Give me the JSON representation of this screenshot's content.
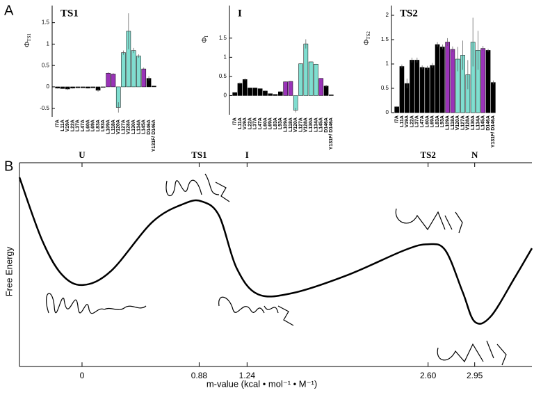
{
  "panel_labels": [
    "A",
    "B"
  ],
  "chart_data": [
    {
      "type": "bar",
      "title": "TS1",
      "title_color": "#cc1f1f",
      "ylabel": "Φ",
      "ylabel_sub": "TS1",
      "categories": [
        "I7A",
        "L11A",
        "V19A",
        "L22A",
        "L37A",
        "L47A",
        "L60A",
        "L69A",
        "L83A",
        "L93A",
        "L109A",
        "L118A",
        "V120A",
        "L127A",
        "V128A",
        "L130A",
        "L134A",
        "L145A",
        "D146A",
        "Y131F/ D146A"
      ],
      "values": [
        -0.03,
        -0.04,
        -0.05,
        -0.03,
        -0.02,
        -0.02,
        -0.03,
        -0.02,
        -0.08,
        -0.01,
        0.32,
        0.3,
        -0.48,
        0.8,
        1.3,
        0.85,
        0.72,
        0.42,
        0.2,
        0.02
      ],
      "errors": [
        0.01,
        0.01,
        0.02,
        0.01,
        0.01,
        0.01,
        0.01,
        0.01,
        0.03,
        0.01,
        0.02,
        0.02,
        0.12,
        0.05,
        0.42,
        0.06,
        0.04,
        0.03,
        0.05,
        0.01
      ],
      "colors": [
        "#000",
        "#000",
        "#000",
        "#000",
        "#000",
        "#000",
        "#000",
        "#000",
        "#000",
        "#000",
        "#9a33b8",
        "#9a33b8",
        "#7fded0",
        "#7fded0",
        "#7fded0",
        "#7fded0",
        "#7fded0",
        "#9a33b8",
        "#000",
        "#000"
      ],
      "ylim": [
        -0.7,
        1.9
      ],
      "yticks": [
        -0.5,
        0,
        0.5,
        1,
        1.5
      ]
    },
    {
      "type": "bar",
      "title": "I",
      "title_color": "#2244bb",
      "ylabel": "Φ",
      "ylabel_sub": "I",
      "categories": [
        "I7A",
        "L11A",
        "V19A",
        "L22A",
        "L37A",
        "L47A",
        "L60A",
        "L69A",
        "L83A",
        "L93A",
        "L109A",
        "L118A",
        "V120A",
        "L127A",
        "V128A",
        "L130A",
        "L134A",
        "L145A",
        "D146A",
        "Y131F/ D146A"
      ],
      "values": [
        0.08,
        0.32,
        0.42,
        0.2,
        0.2,
        0.18,
        0.12,
        0.05,
        0.03,
        0.1,
        0.36,
        0.37,
        -0.38,
        0.83,
        1.35,
        0.88,
        0.82,
        0.45,
        0.25,
        0.02
      ],
      "errors": [
        0.01,
        0.02,
        0.03,
        0.01,
        0.01,
        0.01,
        0.01,
        0.01,
        0.01,
        0.01,
        0.01,
        0.01,
        0.06,
        0.01,
        0.12,
        0.01,
        0.01,
        0.01,
        0.03,
        0.01
      ],
      "colors": [
        "#000",
        "#000",
        "#000",
        "#000",
        "#000",
        "#000",
        "#000",
        "#000",
        "#000",
        "#000",
        "#9a33b8",
        "#9a33b8",
        "#7fded0",
        "#7fded0",
        "#7fded0",
        "#7fded0",
        "#7fded0",
        "#9a33b8",
        "#000",
        "#000"
      ],
      "ylim": [
        -0.5,
        2.35
      ],
      "yticks": [
        0,
        0.5,
        1,
        1.5
      ]
    },
    {
      "type": "bar",
      "title": "TS2",
      "title_color": "#4a7a2a",
      "ylabel": "Φ",
      "ylabel_sub": "TS2",
      "categories": [
        "I7A",
        "L11A",
        "V19A",
        "L22A",
        "L37A",
        "L47A",
        "L60A",
        "L69A",
        "L83A",
        "L93A",
        "L109A",
        "L118A",
        "V120A",
        "L127A",
        "V128A",
        "L130A",
        "L134A",
        "L145A",
        "D146A",
        "Y131F/ D146A"
      ],
      "values": [
        0.12,
        0.95,
        0.6,
        1.08,
        1.08,
        0.93,
        0.92,
        0.97,
        1.4,
        1.35,
        1.45,
        1.3,
        1.1,
        1.18,
        0.78,
        1.45,
        1.28,
        1.32,
        1.28,
        0.62
      ],
      "errors": [
        0.01,
        0.04,
        0.1,
        0.05,
        0.05,
        0.04,
        0.04,
        0.05,
        0.05,
        0.05,
        0.08,
        0.06,
        0.25,
        0.3,
        0.3,
        0.5,
        0.4,
        0.05,
        0.03,
        0.04
      ],
      "colors": [
        "#000",
        "#000",
        "#000",
        "#000",
        "#000",
        "#000",
        "#000",
        "#000",
        "#000",
        "#000",
        "#9a33b8",
        "#9a33b8",
        "#7fded0",
        "#7fded0",
        "#7fded0",
        "#7fded0",
        "#7fded0",
        "#9a33b8",
        "#000",
        "#000"
      ],
      "ylim": [
        0,
        2.2
      ],
      "yticks": [
        0,
        0.5,
        1,
        1.5,
        2
      ]
    },
    {
      "type": "line",
      "xlabel": "m-value (kcal • mol⁻¹ • M⁻¹)",
      "ylabel": "Free Energy",
      "color": "#000",
      "x": [
        -0.47,
        -0.3,
        -0.15,
        0.01,
        0.22,
        0.53,
        0.77,
        0.9,
        1.03,
        1.16,
        1.32,
        1.58,
        2.0,
        2.42,
        2.6,
        2.73,
        2.86,
        2.95,
        3.07,
        3.25,
        3.38
      ],
      "values": [
        9.28,
        6.2,
        4.5,
        4.0,
        4.7,
        7.1,
        8.0,
        8.1,
        7.4,
        4.85,
        3.55,
        3.6,
        4.5,
        5.7,
        6.0,
        5.7,
        3.65,
        2.2,
        2.45,
        4.35,
        5.8
      ],
      "xlim": [
        -0.47,
        3.38
      ],
      "ylim": [
        0,
        10
      ],
      "xticks": [
        0,
        0.88,
        1.24,
        {
          "value": 2.6,
          "label": "2.60"
        },
        2.95
      ],
      "top_labels": [
        "U",
        "TS1",
        "I",
        "TS2",
        "N"
      ],
      "top_label_colors": [
        "#000",
        "#cc1f1f",
        "#2244bb",
        "#4a7a2a",
        "#000"
      ]
    }
  ]
}
